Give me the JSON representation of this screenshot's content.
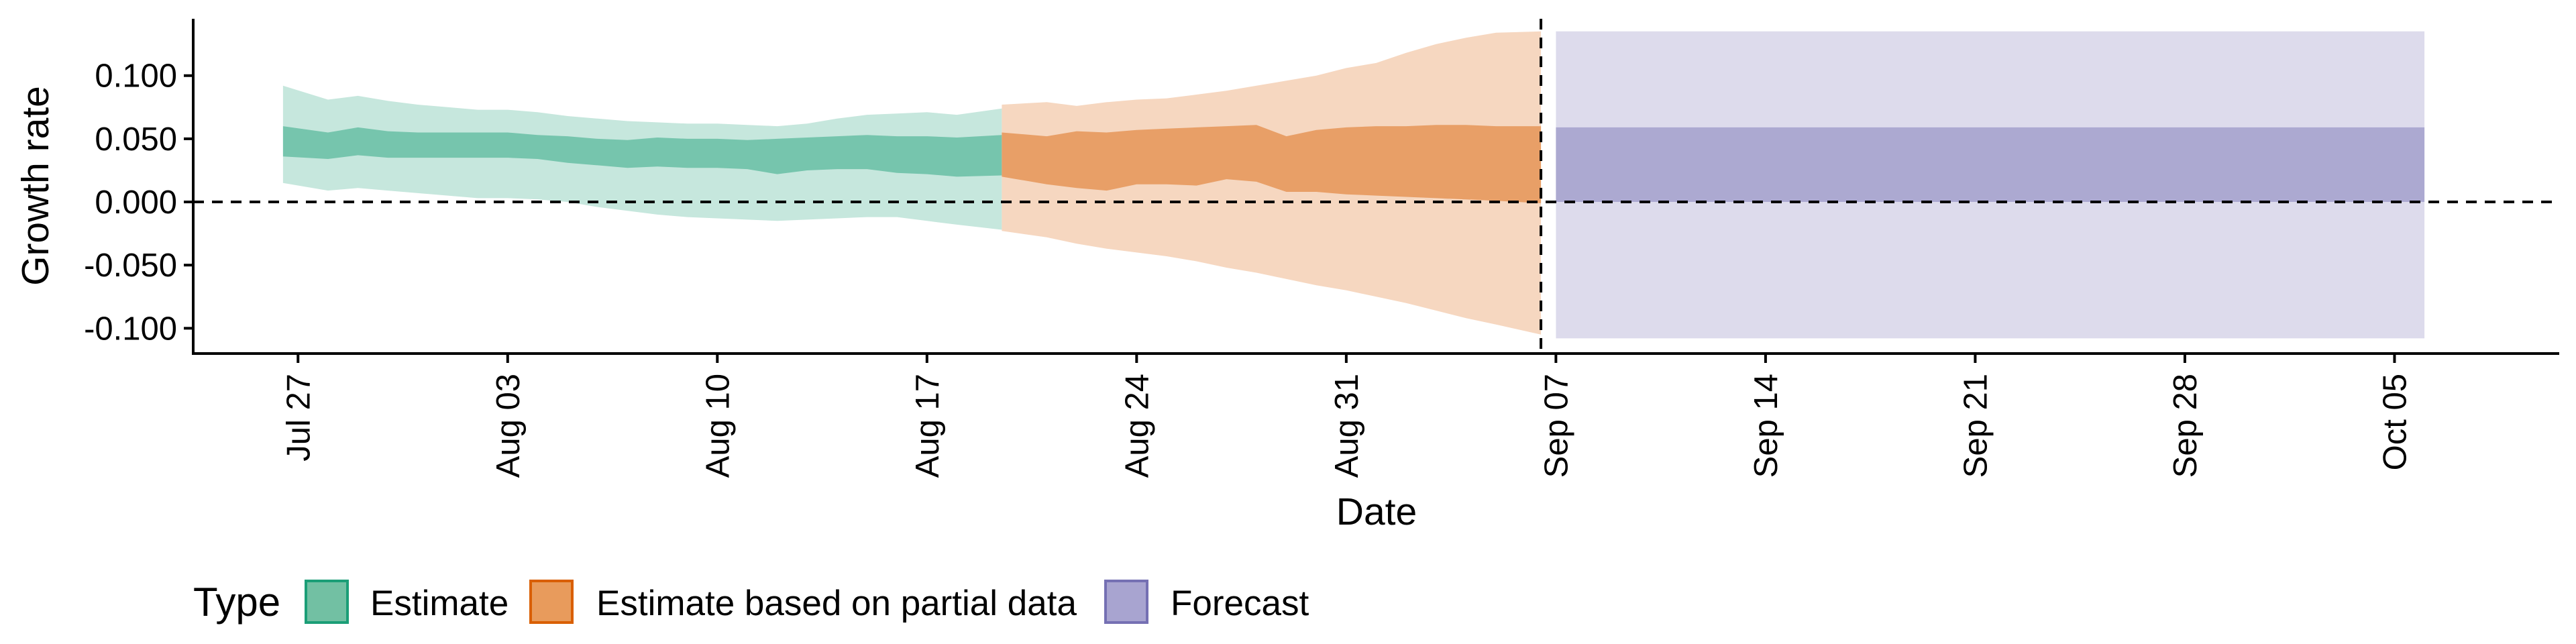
{
  "chart_data": {
    "type": "area",
    "title": "",
    "xlabel": "Date",
    "ylabel": "Growth rate",
    "x_ticks": [
      {
        "date": "2020-07-27",
        "label": "Jul 27"
      },
      {
        "date": "2020-08-03",
        "label": "Aug 03"
      },
      {
        "date": "2020-08-10",
        "label": "Aug 10"
      },
      {
        "date": "2020-08-17",
        "label": "Aug 17"
      },
      {
        "date": "2020-08-24",
        "label": "Aug 24"
      },
      {
        "date": "2020-08-31",
        "label": "Aug 31"
      },
      {
        "date": "2020-09-07",
        "label": "Sep 07"
      },
      {
        "date": "2020-09-14",
        "label": "Sep 14"
      },
      {
        "date": "2020-09-21",
        "label": "Sep 21"
      },
      {
        "date": "2020-09-28",
        "label": "Sep 28"
      },
      {
        "date": "2020-10-05",
        "label": "Oct 05"
      }
    ],
    "y_ticks": [
      {
        "value": 0.1,
        "label": "0.100"
      },
      {
        "value": 0.05,
        "label": "0.050"
      },
      {
        "value": 0.0,
        "label": "0.000"
      },
      {
        "value": -0.05,
        "label": "-0.050"
      },
      {
        "value": -0.1,
        "label": "-0.100"
      }
    ],
    "xlim": [
      "2020-07-23.5",
      "2020-10-10.5"
    ],
    "ylim": [
      -0.12,
      0.145
    ],
    "grid": false,
    "reference_lines": [
      {
        "orientation": "horizontal",
        "y": 0,
        "style": "dashed"
      },
      {
        "orientation": "vertical",
        "x": "2020-09-06",
        "style": "dashed"
      }
    ],
    "legend": {
      "title": "Type",
      "placement": "bottom",
      "entries": [
        "Estimate",
        "Estimate based on partial data",
        "Forecast"
      ]
    },
    "colors": {
      "Estimate": "#1B9E77",
      "Estimate based on partial data": "#D95F02",
      "Forecast": "#7570B3"
    },
    "series": [
      {
        "name": "Estimate",
        "x": [
          "2020-07-27",
          "2020-07-28",
          "2020-07-29",
          "2020-07-30",
          "2020-07-31",
          "2020-08-01",
          "2020-08-02",
          "2020-08-03",
          "2020-08-04",
          "2020-08-05",
          "2020-08-06",
          "2020-08-07",
          "2020-08-08",
          "2020-08-09",
          "2020-08-10",
          "2020-08-11",
          "2020-08-12",
          "2020-08-13",
          "2020-08-14",
          "2020-08-15",
          "2020-08-16",
          "2020-08-17",
          "2020-08-18",
          "2020-08-19"
        ],
        "lower_90": [
          0.015,
          0.009,
          0.011,
          0.009,
          0.007,
          0.005,
          0.003,
          0.003,
          0.002,
          0.0,
          -0.004,
          -0.007,
          -0.01,
          -0.012,
          -0.013,
          -0.014,
          -0.015,
          -0.014,
          -0.013,
          -0.012,
          -0.012,
          -0.015,
          -0.018,
          -0.022
        ],
        "upper_90": [
          0.092,
          0.081,
          0.084,
          0.08,
          0.077,
          0.075,
          0.073,
          0.073,
          0.071,
          0.068,
          0.066,
          0.064,
          0.063,
          0.062,
          0.062,
          0.061,
          0.06,
          0.062,
          0.066,
          0.069,
          0.07,
          0.071,
          0.069,
          0.074
        ],
        "lower_50": [
          0.036,
          0.034,
          0.037,
          0.035,
          0.035,
          0.035,
          0.035,
          0.035,
          0.034,
          0.031,
          0.029,
          0.027,
          0.028,
          0.027,
          0.027,
          0.026,
          0.022,
          0.025,
          0.026,
          0.026,
          0.023,
          0.022,
          0.02,
          0.021
        ],
        "upper_50": [
          0.06,
          0.055,
          0.059,
          0.056,
          0.055,
          0.055,
          0.055,
          0.055,
          0.053,
          0.052,
          0.05,
          0.049,
          0.051,
          0.05,
          0.05,
          0.049,
          0.05,
          0.051,
          0.052,
          0.053,
          0.052,
          0.052,
          0.051,
          0.053
        ]
      },
      {
        "name": "Estimate based on partial data",
        "x": [
          "2020-08-20",
          "2020-08-21",
          "2020-08-22",
          "2020-08-23",
          "2020-08-24",
          "2020-08-25",
          "2020-08-26",
          "2020-08-27",
          "2020-08-28",
          "2020-08-29",
          "2020-08-30",
          "2020-08-31",
          "2020-09-01",
          "2020-09-02",
          "2020-09-03",
          "2020-09-04",
          "2020-09-05",
          "2020-09-06"
        ],
        "lower_90": [
          -0.023,
          -0.028,
          -0.033,
          -0.037,
          -0.04,
          -0.043,
          -0.047,
          -0.052,
          -0.056,
          -0.061,
          -0.066,
          -0.07,
          -0.075,
          -0.08,
          -0.086,
          -0.092,
          -0.097,
          -0.105
        ],
        "upper_90": [
          0.077,
          0.079,
          0.076,
          0.079,
          0.081,
          0.082,
          0.085,
          0.088,
          0.092,
          0.096,
          0.1,
          0.106,
          0.11,
          0.118,
          0.125,
          0.13,
          0.134,
          0.135
        ],
        "lower_50": [
          0.02,
          0.014,
          0.011,
          0.009,
          0.014,
          0.014,
          0.013,
          0.018,
          0.016,
          0.008,
          0.008,
          0.006,
          0.005,
          0.004,
          0.003,
          0.002,
          0.001,
          -0.001
        ],
        "upper_50": [
          0.055,
          0.052,
          0.056,
          0.055,
          0.057,
          0.058,
          0.059,
          0.06,
          0.061,
          0.052,
          0.057,
          0.059,
          0.06,
          0.06,
          0.061,
          0.061,
          0.06,
          0.06
        ]
      },
      {
        "name": "Forecast",
        "x": [
          "2020-09-07",
          "2020-10-06"
        ],
        "lower_90": [
          -0.108,
          -0.108
        ],
        "upper_90": [
          0.135,
          0.135
        ],
        "lower_50": [
          0.0,
          0.0
        ],
        "upper_50": [
          0.059,
          0.059
        ]
      }
    ]
  }
}
